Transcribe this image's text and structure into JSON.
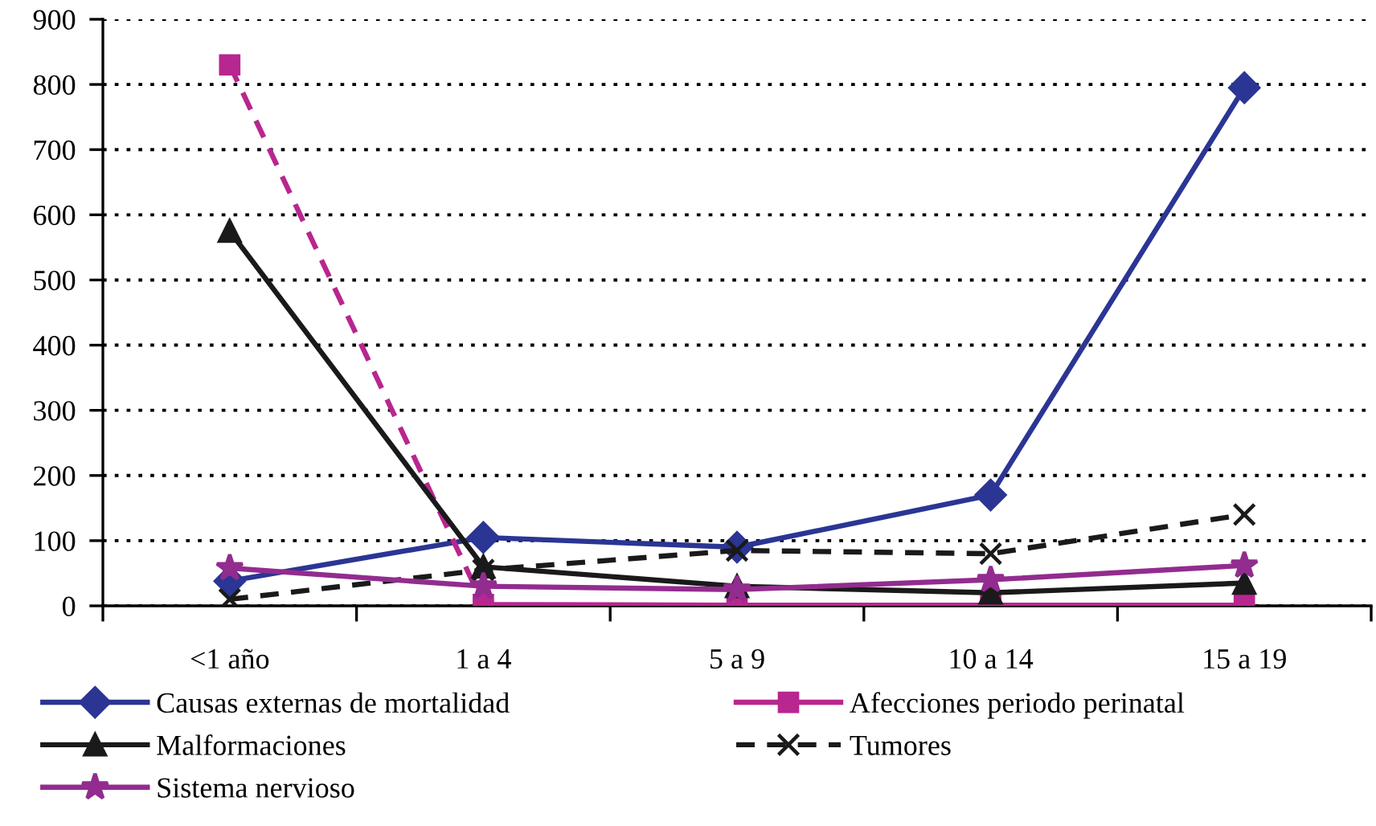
{
  "chart_data": {
    "type": "line",
    "categories": [
      "<1 año",
      "1 a 4",
      "5 a 9",
      "10 a 14",
      "15 a 19"
    ],
    "ylim": [
      0,
      900
    ],
    "yticks": [
      0,
      100,
      200,
      300,
      400,
      500,
      600,
      700,
      800,
      900
    ],
    "grid": "y",
    "legend": "bottom",
    "series": [
      {
        "name": "Causas externas de mortalidad",
        "color": "#2b3594",
        "marker": "diamond",
        "line_style": "solid",
        "values": [
          38,
          105,
          90,
          170,
          795
        ]
      },
      {
        "name": "Afecciones periodo perinatal",
        "color": "#b8268f",
        "marker": "square",
        "line_style": [
          "dashed",
          "solid",
          "solid",
          "solid"
        ],
        "values": [
          830,
          2,
          1,
          1,
          1
        ]
      },
      {
        "name": "Malformaciones",
        "color": "#1a1a1a",
        "marker": "triangle",
        "line_style": "solid",
        "values": [
          575,
          60,
          30,
          20,
          35
        ]
      },
      {
        "name": "Tumores",
        "color": "#1a1a1a",
        "marker": "cross",
        "line_style": "dashed",
        "values": [
          10,
          55,
          85,
          80,
          140
        ]
      },
      {
        "name": "Sistema nervioso",
        "color": "#922c8f",
        "marker": "star",
        "line_style": "solid",
        "values": [
          58,
          30,
          25,
          40,
          62
        ]
      }
    ]
  }
}
